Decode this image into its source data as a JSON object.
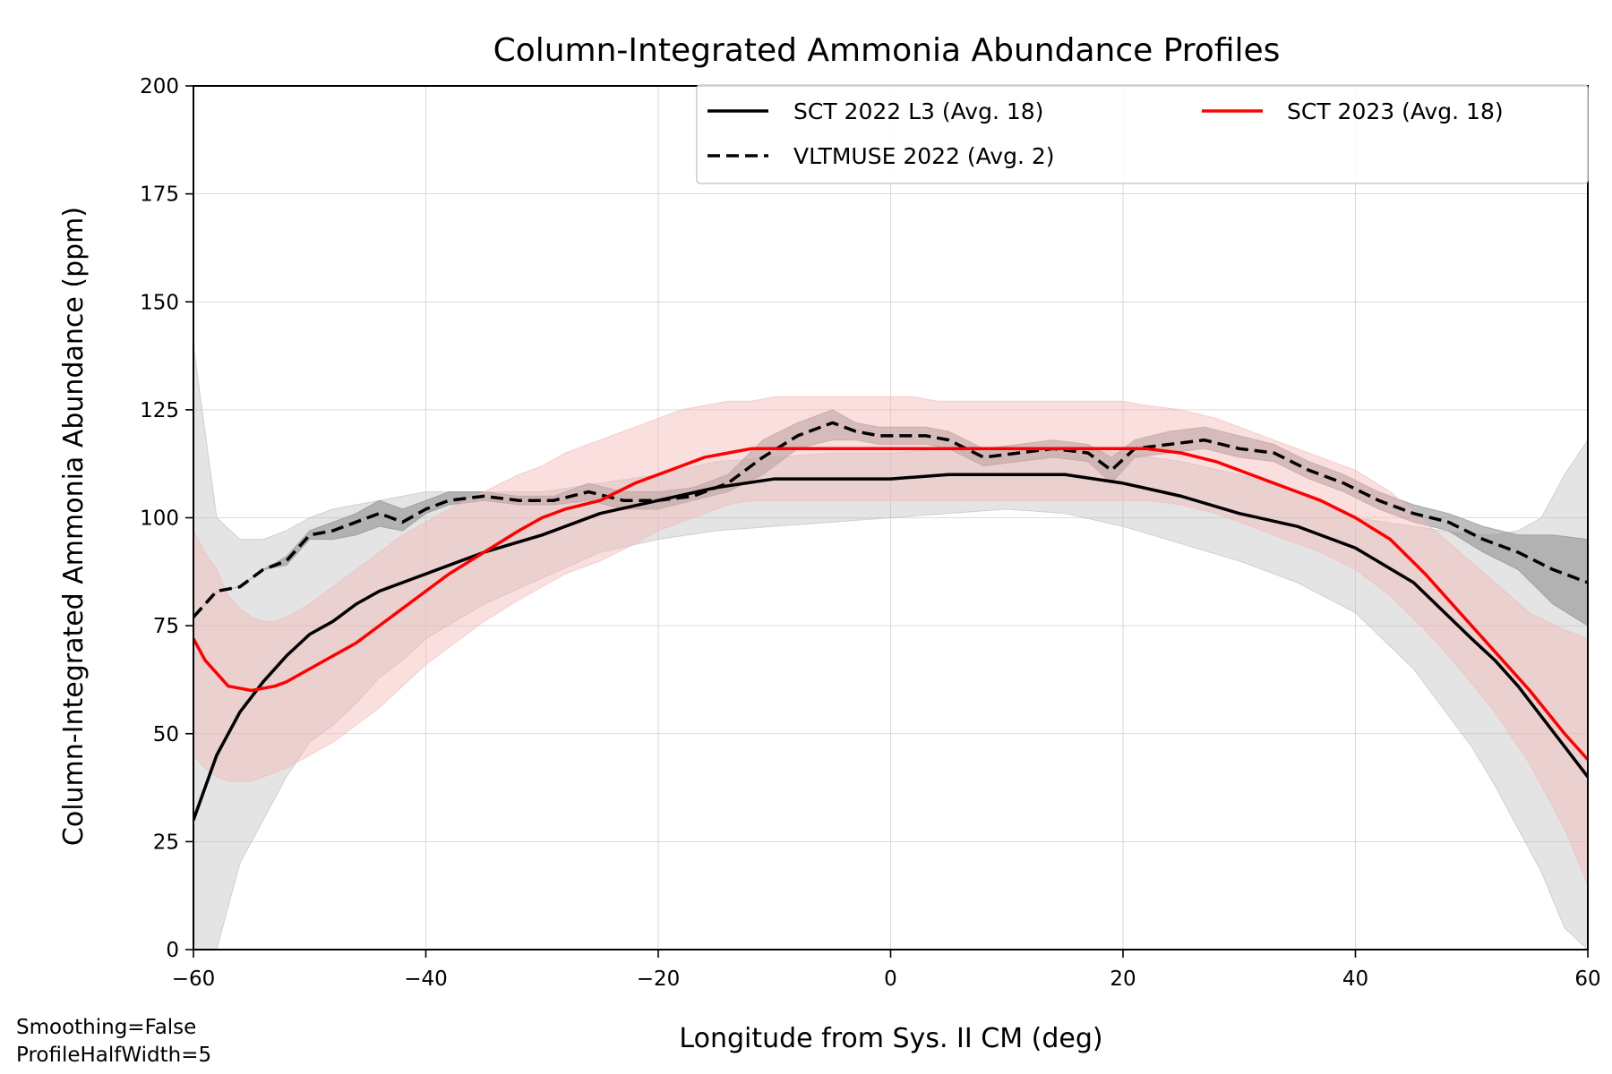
{
  "chart_data": {
    "type": "line",
    "title": "Column-Integrated Ammonia Abundance Profiles",
    "xlabel": "Longitude from Sys. II CM (deg)",
    "ylabel": "Column-Integrated Ammonia Abundance (ppm)",
    "xlim": [
      -60,
      60
    ],
    "ylim": [
      0,
      200
    ],
    "xticks": [
      -60,
      -40,
      -20,
      0,
      20,
      40,
      60
    ],
    "xtick_labels": [
      "−60",
      "−40",
      "−20",
      "0",
      "20",
      "40",
      "60"
    ],
    "yticks": [
      0,
      25,
      50,
      75,
      100,
      125,
      150,
      175,
      200
    ],
    "ytick_labels": [
      "0",
      "25",
      "50",
      "75",
      "100",
      "125",
      "150",
      "175",
      "200"
    ],
    "grid": true,
    "legend_position": "top-right",
    "annotations": [
      "Smoothing=False",
      "ProfileHalfWidth=5"
    ],
    "series": [
      {
        "name": "SCT 2022 L3 (Avg. 18)",
        "color": "#000000",
        "style": "solid",
        "band_color": "#bbbbbb",
        "x": [
          -60,
          -58,
          -56,
          -54,
          -52,
          -50,
          -48,
          -46,
          -44,
          -42,
          -40,
          -35,
          -30,
          -25,
          -20,
          -15,
          -10,
          -5,
          0,
          5,
          10,
          15,
          20,
          25,
          30,
          35,
          40,
          45,
          50,
          52,
          54,
          56,
          58,
          60
        ],
        "y": [
          30,
          45,
          55,
          62,
          68,
          73,
          76,
          80,
          83,
          85,
          87,
          92,
          96,
          101,
          104,
          107,
          109,
          109,
          109,
          110,
          110,
          110,
          108,
          105,
          101,
          98,
          93,
          85,
          72,
          67,
          61,
          54,
          47,
          40
        ],
        "lower": [
          0,
          0,
          20,
          30,
          40,
          48,
          52,
          57,
          63,
          67,
          72,
          80,
          86,
          92,
          95,
          97,
          98,
          99,
          100,
          101,
          102,
          101,
          98,
          94,
          90,
          85,
          78,
          65,
          47,
          38,
          28,
          18,
          5,
          0
        ],
        "upper": [
          140,
          100,
          95,
          95,
          97,
          100,
          102,
          103,
          104,
          105,
          106,
          106,
          106,
          108,
          110,
          113,
          114,
          115,
          115,
          116,
          116,
          116,
          115,
          113,
          110,
          106,
          100,
          98,
          96,
          96,
          97,
          100,
          110,
          118
        ]
      },
      {
        "name": "VLTMUSE 2022 (Avg. 2)",
        "color": "#000000",
        "style": "dashed",
        "band_color": "#888888",
        "x": [
          -60,
          -58,
          -56,
          -54,
          -52,
          -50,
          -48,
          -46,
          -44,
          -42,
          -40,
          -38,
          -35,
          -32,
          -29,
          -26,
          -23,
          -20,
          -17,
          -14,
          -11,
          -8,
          -5,
          -3,
          -1,
          1,
          3,
          5,
          8,
          11,
          14,
          17,
          19,
          21,
          24,
          27,
          30,
          33,
          36,
          39,
          42,
          45,
          48,
          51,
          54,
          57,
          60
        ],
        "y": [
          77,
          83,
          84,
          88,
          90,
          96,
          97,
          99,
          101,
          99,
          102,
          104,
          105,
          104,
          104,
          106,
          104,
          104,
          105,
          108,
          114,
          119,
          122,
          120,
          119,
          119,
          119,
          118,
          114,
          115,
          116,
          115,
          111,
          116,
          117,
          118,
          116,
          115,
          111,
          108,
          104,
          101,
          99,
          95,
          92,
          88,
          85
        ],
        "lower": [
          77,
          83,
          84,
          88,
          89,
          95,
          95,
          96,
          98,
          97,
          101,
          103,
          104,
          103,
          103,
          104,
          102,
          102,
          104,
          106,
          110,
          116,
          118,
          118,
          117,
          117,
          117,
          116,
          112,
          113,
          114,
          113,
          108,
          114,
          115,
          116,
          114,
          113,
          109,
          106,
          102,
          99,
          97,
          92,
          88,
          80,
          75
        ],
        "upper": [
          77,
          83,
          84,
          88,
          91,
          97,
          99,
          101,
          104,
          102,
          104,
          106,
          106,
          105,
          105,
          108,
          106,
          106,
          107,
          110,
          118,
          122,
          125,
          122,
          121,
          121,
          121,
          120,
          116,
          117,
          118,
          117,
          114,
          118,
          120,
          121,
          119,
          117,
          113,
          110,
          106,
          103,
          101,
          98,
          96,
          96,
          95
        ]
      },
      {
        "name": "SCT 2023 (Avg. 18)",
        "color": "#ff0000",
        "style": "solid",
        "band_color": "#f4b8b8",
        "x": [
          -60,
          -59,
          -58,
          -57,
          -56,
          -55,
          -54,
          -53,
          -52,
          -50,
          -48,
          -46,
          -44,
          -42,
          -40,
          -38,
          -35,
          -32,
          -30,
          -28,
          -25,
          -22,
          -20,
          -18,
          -16,
          -14,
          -12,
          -10,
          -8,
          -6,
          -4,
          -2,
          0,
          2,
          4,
          6,
          8,
          10,
          12,
          14,
          16,
          18,
          20,
          22,
          25,
          28,
          31,
          34,
          37,
          40,
          43,
          46,
          49,
          52,
          55,
          58,
          60
        ],
        "y": [
          72,
          67,
          64,
          61,
          60.5,
          60,
          60.5,
          61,
          62,
          65,
          68,
          71,
          75,
          79,
          83,
          87,
          92,
          97,
          100,
          102,
          104,
          108,
          110,
          112,
          114,
          115,
          116,
          116,
          116,
          116,
          116,
          116,
          116,
          116,
          116,
          116,
          116,
          116,
          116,
          116,
          116,
          116,
          116,
          116,
          115,
          113,
          110,
          107,
          104,
          100,
          95,
          87,
          78,
          69,
          60,
          50,
          44
        ],
        "lower": [
          45,
          42,
          40,
          39,
          39,
          39,
          40,
          41,
          42,
          45,
          48,
          52,
          56,
          61,
          66,
          70,
          76,
          81,
          84,
          87,
          90,
          94,
          97,
          99,
          101,
          103,
          104,
          104,
          104,
          104,
          104,
          104,
          104,
          104,
          104,
          104,
          104,
          104,
          104,
          104,
          104,
          104,
          104,
          104,
          103,
          101,
          98,
          95,
          92,
          88,
          82,
          74,
          65,
          55,
          43,
          28,
          15
        ],
        "upper": [
          97,
          92,
          88,
          82,
          79,
          77,
          76,
          76,
          77,
          80,
          84,
          88,
          92,
          96,
          99,
          102,
          106,
          110,
          112,
          115,
          118,
          121,
          123,
          125,
          126,
          127,
          127,
          128,
          128,
          128,
          128,
          128,
          128,
          128,
          127,
          127,
          127,
          127,
          127,
          127,
          127,
          127,
          127,
          126,
          125,
          123,
          120,
          117,
          114,
          111,
          106,
          99,
          92,
          85,
          78,
          74,
          72
        ]
      }
    ]
  }
}
